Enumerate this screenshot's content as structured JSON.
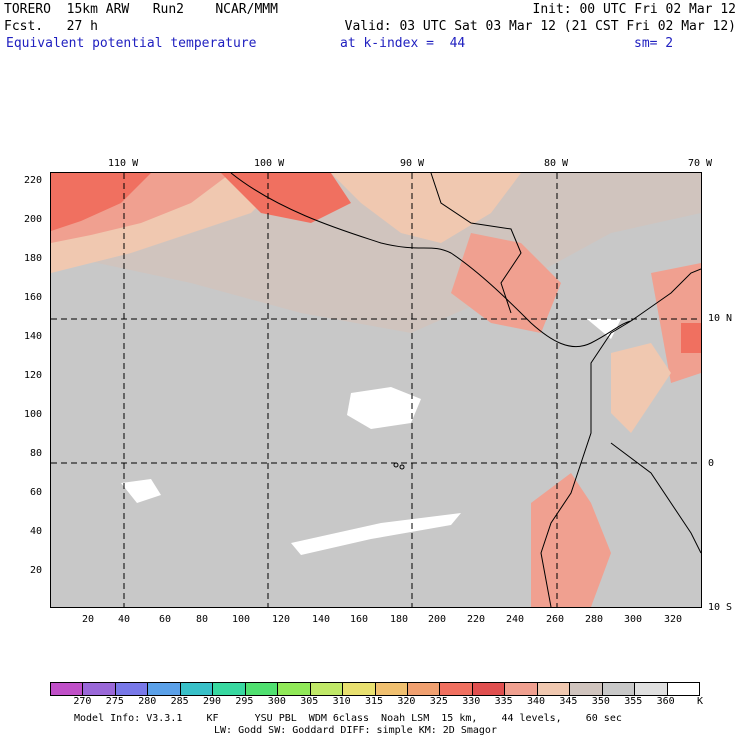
{
  "header": {
    "line1_left": "TORERO  15km ARW   Run2    NCAR/MMM",
    "line1_right": "Init: 00 UTC Fri 02 Mar 12",
    "line2_left": "Fcst.   27 h",
    "line2_right": "Valid: 03 UTC Sat 03 Mar 12 (21 CST Fri 02 Mar 12)",
    "field_name": "Equivalent potential temperature",
    "level": "at k-index =  44",
    "smoothing": "sm= 2"
  },
  "map": {
    "top_lon_labels": [
      "110 W",
      "100 W",
      "90 W",
      "80 W",
      "70 W"
    ],
    "right_lat_labels": [
      "10 N",
      "0",
      "10 S"
    ],
    "y_ticks": [
      "220",
      "200",
      "180",
      "160",
      "140",
      "120",
      "100",
      "80",
      "60",
      "40",
      "20"
    ],
    "x_ticks": [
      "20",
      "40",
      "60",
      "80",
      "100",
      "120",
      "140",
      "160",
      "180",
      "200",
      "220",
      "240",
      "260",
      "280",
      "300",
      "320"
    ]
  },
  "colorbar": {
    "unit": "K",
    "labels": [
      "270",
      "275",
      "280",
      "285",
      "290",
      "295",
      "300",
      "305",
      "310",
      "315",
      "320",
      "325",
      "330",
      "335",
      "340",
      "345",
      "350",
      "355",
      "360"
    ],
    "colors": [
      "#c050c8",
      "#9a68d8",
      "#7878e8",
      "#5aa0e8",
      "#38c0c8",
      "#38d8a0",
      "#50e070",
      "#90e858",
      "#c0e868",
      "#e8e070",
      "#f0c070",
      "#f0a070",
      "#f07060",
      "#e05050",
      "#f0a090",
      "#f0c8b0",
      "#d0c4be",
      "#c8c8c8",
      "#e0e0e0",
      "#ffffff"
    ]
  },
  "footer": {
    "line1": "Model Info: V3.3.1    KF      YSU PBL  WDM 6class  Noah LSM  15 km,    44 levels,    60 sec",
    "line2": "LW: Godd SW: Goddard DIFF: simple KM: 2D Smagor"
  }
}
